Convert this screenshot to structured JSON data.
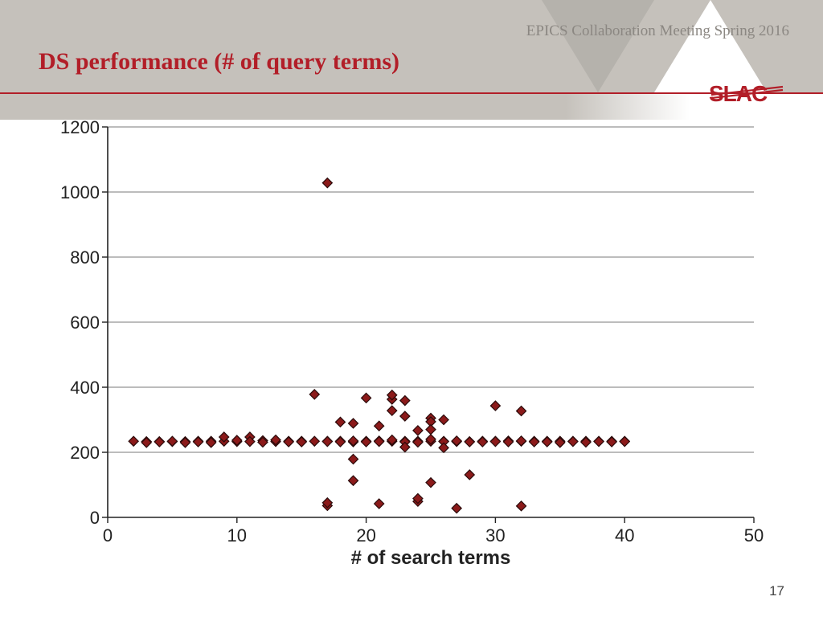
{
  "conference": "EPICS Collaboration Meeting Spring 2016",
  "title": "DS performance (# of query terms)",
  "page_number": "17",
  "logo_text": "SLAC",
  "colors": {
    "accent": "#b21e28",
    "banner": "#c5c1bb",
    "grid": "#7a7a7a",
    "axis": "#222222",
    "marker_fill": "#8b1a1a",
    "marker_stroke": "#2b0b0b"
  },
  "chart": {
    "type": "scatter",
    "xlabel": "# of search terms",
    "xlim": [
      0,
      50
    ],
    "xticks": [
      0,
      10,
      20,
      30,
      40,
      50
    ],
    "ylim": [
      0,
      1200
    ],
    "yticks": [
      0,
      200,
      400,
      600,
      800,
      1000,
      1200
    ],
    "marker": {
      "shape": "diamond",
      "size": 12,
      "fill": "#8b1a1a",
      "stroke": "#2b0b0b",
      "stroke_width": 1.2
    },
    "points": [
      [
        2,
        234
      ],
      [
        3,
        233
      ],
      [
        3,
        230
      ],
      [
        4,
        233
      ],
      [
        4,
        232
      ],
      [
        5,
        233
      ],
      [
        5,
        234
      ],
      [
        6,
        233
      ],
      [
        6,
        230
      ],
      [
        7,
        234
      ],
      [
        7,
        232
      ],
      [
        8,
        234
      ],
      [
        8,
        230
      ],
      [
        9,
        234
      ],
      [
        9,
        247
      ],
      [
        10,
        233
      ],
      [
        10,
        237
      ],
      [
        11,
        247
      ],
      [
        11,
        233
      ],
      [
        12,
        236
      ],
      [
        12,
        231
      ],
      [
        13,
        233
      ],
      [
        13,
        238
      ],
      [
        14,
        234
      ],
      [
        14,
        232
      ],
      [
        15,
        234
      ],
      [
        15,
        232
      ],
      [
        16,
        234
      ],
      [
        16,
        378
      ],
      [
        17,
        234
      ],
      [
        17,
        233
      ],
      [
        17,
        36
      ],
      [
        17,
        45
      ],
      [
        17,
        1028
      ],
      [
        18,
        234
      ],
      [
        18,
        232
      ],
      [
        18,
        293
      ],
      [
        19,
        232
      ],
      [
        19,
        235
      ],
      [
        19,
        113
      ],
      [
        19,
        179
      ],
      [
        19,
        289
      ],
      [
        20,
        234
      ],
      [
        20,
        232
      ],
      [
        20,
        367
      ],
      [
        21,
        235
      ],
      [
        21,
        233
      ],
      [
        21,
        281
      ],
      [
        21,
        42
      ],
      [
        22,
        234
      ],
      [
        22,
        238
      ],
      [
        22,
        363
      ],
      [
        22,
        376
      ],
      [
        22,
        328
      ],
      [
        23,
        234
      ],
      [
        23,
        232
      ],
      [
        23,
        359
      ],
      [
        23,
        311
      ],
      [
        23,
        216
      ],
      [
        24,
        234
      ],
      [
        24,
        231
      ],
      [
        24,
        267
      ],
      [
        24,
        49
      ],
      [
        24,
        58
      ],
      [
        25,
        234
      ],
      [
        25,
        240
      ],
      [
        25,
        305
      ],
      [
        25,
        107
      ],
      [
        25,
        294
      ],
      [
        25,
        270
      ],
      [
        26,
        234
      ],
      [
        26,
        233
      ],
      [
        26,
        300
      ],
      [
        26,
        214
      ],
      [
        27,
        233
      ],
      [
        27,
        235
      ],
      [
        27,
        28
      ],
      [
        28,
        233
      ],
      [
        28,
        232
      ],
      [
        28,
        131
      ],
      [
        29,
        234
      ],
      [
        29,
        232
      ],
      [
        30,
        234
      ],
      [
        30,
        233
      ],
      [
        30,
        343
      ],
      [
        31,
        235
      ],
      [
        31,
        232
      ],
      [
        32,
        234
      ],
      [
        32,
        235
      ],
      [
        32,
        35
      ],
      [
        32,
        327
      ],
      [
        33,
        234
      ],
      [
        33,
        232
      ],
      [
        34,
        234
      ],
      [
        34,
        232
      ],
      [
        35,
        234
      ],
      [
        35,
        230
      ],
      [
        36,
        234
      ],
      [
        36,
        233
      ],
      [
        37,
        234
      ],
      [
        37,
        231
      ],
      [
        38,
        234
      ],
      [
        38,
        233
      ],
      [
        39,
        234
      ],
      [
        39,
        232
      ],
      [
        40,
        234
      ],
      [
        40,
        233
      ]
    ]
  }
}
